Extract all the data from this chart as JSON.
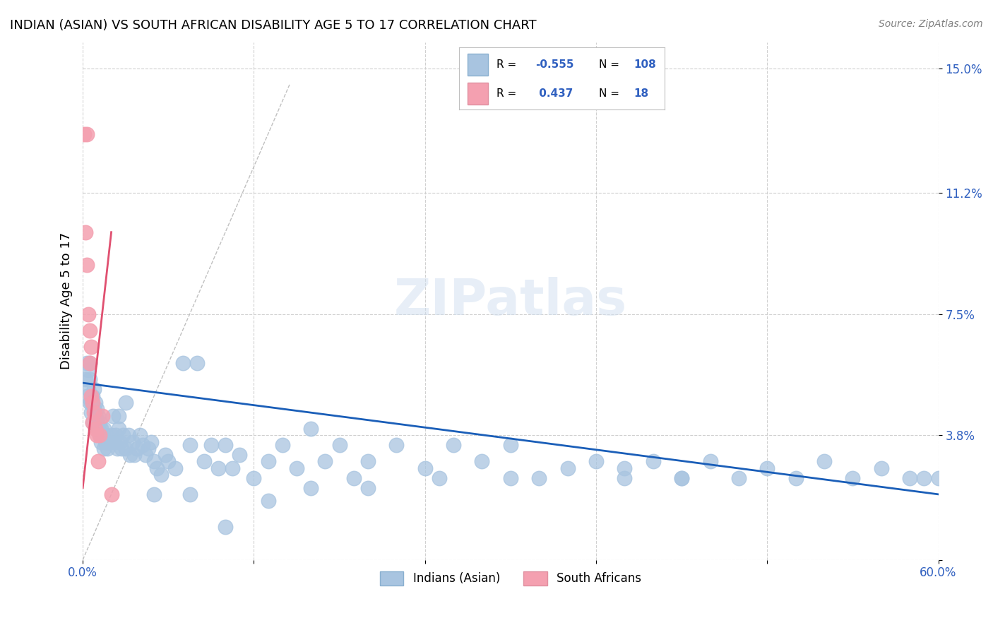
{
  "title": "INDIAN (ASIAN) VS SOUTH AFRICAN DISABILITY AGE 5 TO 17 CORRELATION CHART",
  "source": "Source: ZipAtlas.com",
  "xlabel": "",
  "ylabel": "Disability Age 5 to 17",
  "xmin": 0.0,
  "xmax": 0.6,
  "yticks": [
    0.0,
    0.038,
    0.075,
    0.112,
    0.15
  ],
  "ytick_labels": [
    "",
    "3.8%",
    "7.5%",
    "11.2%",
    "15.0%"
  ],
  "xtick_labels": [
    "0.0%",
    "",
    "",
    "",
    "",
    "",
    "60.0%"
  ],
  "blue_R": -0.555,
  "blue_N": 108,
  "pink_R": 0.437,
  "pink_N": 18,
  "blue_color": "#a8c4e0",
  "pink_color": "#f4a0b0",
  "blue_line_color": "#1a5eb8",
  "pink_line_color": "#e05070",
  "grid_color": "#d0d0d0",
  "watermark": "ZIPatlas",
  "blue_scatter_x": [
    0.002,
    0.003,
    0.003,
    0.004,
    0.004,
    0.005,
    0.005,
    0.005,
    0.006,
    0.006,
    0.007,
    0.007,
    0.008,
    0.008,
    0.009,
    0.009,
    0.01,
    0.01,
    0.011,
    0.011,
    0.012,
    0.012,
    0.013,
    0.013,
    0.014,
    0.015,
    0.015,
    0.016,
    0.016,
    0.017,
    0.018,
    0.02,
    0.021,
    0.022,
    0.023,
    0.024,
    0.025,
    0.026,
    0.027,
    0.028,
    0.03,
    0.032,
    0.033,
    0.035,
    0.036,
    0.038,
    0.04,
    0.042,
    0.044,
    0.046,
    0.048,
    0.05,
    0.052,
    0.055,
    0.058,
    0.06,
    0.065,
    0.07,
    0.075,
    0.08,
    0.085,
    0.09,
    0.095,
    0.1,
    0.105,
    0.11,
    0.12,
    0.13,
    0.14,
    0.15,
    0.16,
    0.17,
    0.18,
    0.19,
    0.2,
    0.22,
    0.24,
    0.26,
    0.28,
    0.3,
    0.32,
    0.34,
    0.36,
    0.38,
    0.4,
    0.42,
    0.44,
    0.46,
    0.48,
    0.5,
    0.52,
    0.54,
    0.56,
    0.42,
    0.38,
    0.3,
    0.25,
    0.2,
    0.16,
    0.13,
    0.1,
    0.075,
    0.05,
    0.58,
    0.59,
    0.6,
    0.03,
    0.025
  ],
  "blue_scatter_y": [
    0.055,
    0.05,
    0.06,
    0.052,
    0.058,
    0.048,
    0.055,
    0.06,
    0.048,
    0.045,
    0.05,
    0.042,
    0.046,
    0.052,
    0.044,
    0.048,
    0.042,
    0.046,
    0.04,
    0.044,
    0.038,
    0.042,
    0.04,
    0.036,
    0.038,
    0.04,
    0.034,
    0.038,
    0.036,
    0.034,
    0.036,
    0.038,
    0.044,
    0.036,
    0.038,
    0.034,
    0.04,
    0.036,
    0.034,
    0.038,
    0.034,
    0.038,
    0.032,
    0.036,
    0.032,
    0.034,
    0.038,
    0.035,
    0.032,
    0.034,
    0.036,
    0.03,
    0.028,
    0.026,
    0.032,
    0.03,
    0.028,
    0.06,
    0.035,
    0.06,
    0.03,
    0.035,
    0.028,
    0.035,
    0.028,
    0.032,
    0.025,
    0.03,
    0.035,
    0.028,
    0.04,
    0.03,
    0.035,
    0.025,
    0.03,
    0.035,
    0.028,
    0.035,
    0.03,
    0.035,
    0.025,
    0.028,
    0.03,
    0.028,
    0.03,
    0.025,
    0.03,
    0.025,
    0.028,
    0.025,
    0.03,
    0.025,
    0.028,
    0.025,
    0.025,
    0.025,
    0.025,
    0.022,
    0.022,
    0.018,
    0.01,
    0.02,
    0.02,
    0.025,
    0.025,
    0.025,
    0.048,
    0.044
  ],
  "pink_scatter_x": [
    0.001,
    0.002,
    0.003,
    0.003,
    0.004,
    0.005,
    0.005,
    0.006,
    0.006,
    0.007,
    0.007,
    0.008,
    0.009,
    0.01,
    0.011,
    0.012,
    0.014,
    0.02
  ],
  "pink_scatter_y": [
    0.13,
    0.1,
    0.13,
    0.09,
    0.075,
    0.07,
    0.06,
    0.065,
    0.05,
    0.048,
    0.042,
    0.045,
    0.04,
    0.038,
    0.03,
    0.038,
    0.044,
    0.02
  ],
  "blue_line_x0": 0.0,
  "blue_line_x1": 0.6,
  "blue_line_y0": 0.054,
  "blue_line_y1": 0.02,
  "pink_line_x0": 0.0,
  "pink_line_x1": 0.02,
  "pink_line_y0": 0.022,
  "pink_line_y1": 0.1,
  "diag_line_x0": 0.0,
  "diag_line_x1": 0.145,
  "diag_line_y0": 0.0,
  "diag_line_y1": 0.145
}
